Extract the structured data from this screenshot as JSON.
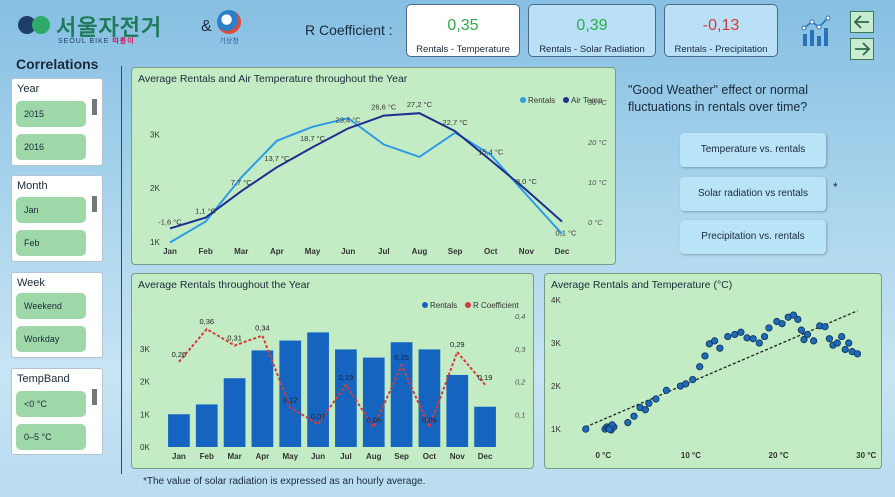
{
  "header": {
    "logo_text": "서울자전거",
    "logo_sub_en": "SEOUL BIKE",
    "logo_sub_kr": "따릉이",
    "amp": "&",
    "kma_label": "기상청",
    "r_label": "R Coefficient :",
    "cards": [
      {
        "value": "0,35",
        "label": "Rentals - Temperature",
        "color": "#2eaa4a",
        "bg": "#ffffff"
      },
      {
        "value": "0,39",
        "label": "Rentals - Solar Radiation",
        "color": "#2eaa4a",
        "bg": "#b9e0f7"
      },
      {
        "value": "-0,13",
        "label": "Rentals - Precipitation",
        "color": "#d83a3a",
        "bg": "#b9e0f7"
      }
    ],
    "nav_back": "←",
    "nav_forward": "→"
  },
  "sidebar": {
    "title": "Correlations",
    "slicers": [
      {
        "name": "Year",
        "options": [
          "2015",
          "2016"
        ]
      },
      {
        "name": "Month",
        "options": [
          "Jan",
          "Feb"
        ]
      },
      {
        "name": "Week",
        "options": [
          "Weekend",
          "Workday"
        ]
      },
      {
        "name": "TempBand",
        "options": [
          "<0 °C",
          "0–5 °C"
        ]
      }
    ]
  },
  "question": "\"Good Weather\" effect or normal fluctuations in rentals over time?",
  "buttons": [
    "Temperature vs. rentals",
    "Solar radiation vs rentals",
    "Precipitation vs. rentals"
  ],
  "star": "*",
  "footnote": "*The value of solar radiation is expressed as an hourly average.",
  "chart_data": [
    {
      "type": "line",
      "title": "Average Rentals and Air Temperature throughout the Year",
      "categories": [
        "Jan",
        "Feb",
        "Mar",
        "Apr",
        "May",
        "Jun",
        "Jul",
        "Aug",
        "Sep",
        "Oct",
        "Nov",
        "Dec"
      ],
      "series": [
        {
          "name": "Rentals",
          "axis": "left",
          "color": "#2d9be8",
          "values": [
            0.99,
            1.38,
            2.2,
            2.88,
            3.14,
            3.3,
            2.81,
            2.58,
            3.03,
            2.62,
            1.88,
            1.15
          ]
        },
        {
          "name": "Air Temp",
          "axis": "right",
          "color": "#1f2e8f",
          "values": [
            -1.6,
            1.1,
            7.7,
            13.7,
            18.7,
            23.4,
            26.6,
            27.2,
            22.7,
            15.4,
            8.0,
            0.1
          ],
          "labels": [
            "-1,6 °C",
            "1,1 °C",
            "7,7 °C",
            "13,7 °C",
            "18,7 °C",
            "23,4 °C",
            "26,6 °C",
            "27,2 °C",
            "22,7 °C",
            "15,4 °C",
            "8,0 °C",
            "0,1 °C"
          ]
        }
      ],
      "left_ticks": [
        "1K",
        "2K",
        "3K"
      ],
      "right_ticks": [
        "0 °C",
        "10 °C",
        "20 °C",
        "30 °C"
      ],
      "ylim_left": [
        1000,
        3600
      ],
      "ylim_right": [
        -5,
        30
      ],
      "legend": "top-right"
    },
    {
      "type": "bar",
      "title": "Average Rentals throughout the Year",
      "categories": [
        "Jan",
        "Feb",
        "Mar",
        "Apr",
        "May",
        "Jun",
        "Jul",
        "Aug",
        "Sep",
        "Oct",
        "Nov",
        "Dec"
      ],
      "series": [
        {
          "name": "Rentals",
          "axis": "left",
          "color": "#1565c0",
          "values": [
            1000,
            1300,
            2100,
            2950,
            3250,
            3500,
            2980,
            2730,
            3200,
            2980,
            2200,
            1230
          ]
        },
        {
          "name": "R Coefficient",
          "axis": "right",
          "color": "#d83a3a",
          "values": [
            0.26,
            0.36,
            0.31,
            0.34,
            0.12,
            0.07,
            0.19,
            0.06,
            0.25,
            0.06,
            0.29,
            0.19
          ],
          "labels": [
            "0,26",
            "0,36",
            "0,31",
            "0,34",
            "0,12",
            "0,07",
            "0,19",
            "0,06",
            "0,25",
            "0,06",
            "0,29",
            "0,19"
          ]
        }
      ],
      "left_ticks": [
        "0K",
        "1K",
        "2K",
        "3K"
      ],
      "right_ticks": [
        "0,1",
        "0,2",
        "0,3",
        "0,4"
      ],
      "ylim_left": [
        0,
        4000
      ],
      "ylim_right": [
        0,
        0.4
      ],
      "legend": "top-right"
    },
    {
      "type": "scatter",
      "title": "Average Rentals and Temperature (°C)",
      "x_ticks": [
        "0 °C",
        "10 °C",
        "20 °C",
        "30 °C"
      ],
      "y_ticks": [
        "1K",
        "2K",
        "3K",
        "4K"
      ],
      "xlim": [
        -3,
        31
      ],
      "ylim": [
        700,
        4000
      ],
      "trendline": {
        "x0": -2,
        "y0": 1050,
        "x1": 29,
        "y1": 3750
      },
      "points": [
        [
          -2,
          1000
        ],
        [
          0.2,
          1000
        ],
        [
          0.4,
          1050
        ],
        [
          0.6,
          1020
        ],
        [
          0.9,
          980
        ],
        [
          1.2,
          1050
        ],
        [
          1.0,
          1100
        ],
        [
          0.7,
          1000
        ],
        [
          2.8,
          1150
        ],
        [
          3.5,
          1300
        ],
        [
          4.2,
          1500
        ],
        [
          4.8,
          1450
        ],
        [
          5.2,
          1600
        ],
        [
          6.0,
          1700
        ],
        [
          7.2,
          1900
        ],
        [
          8.8,
          2000
        ],
        [
          9.4,
          2050
        ],
        [
          10.2,
          2150
        ],
        [
          11.0,
          2450
        ],
        [
          11.6,
          2700
        ],
        [
          12.1,
          2980
        ],
        [
          12.7,
          3050
        ],
        [
          13.3,
          2880
        ],
        [
          14.2,
          3150
        ],
        [
          15.0,
          3200
        ],
        [
          15.7,
          3250
        ],
        [
          16.4,
          3120
        ],
        [
          17.1,
          3100
        ],
        [
          17.8,
          3000
        ],
        [
          18.4,
          3150
        ],
        [
          18.9,
          3350
        ],
        [
          19.8,
          3500
        ],
        [
          20.4,
          3450
        ],
        [
          21.1,
          3600
        ],
        [
          21.7,
          3650
        ],
        [
          22.2,
          3550
        ],
        [
          22.6,
          3300
        ],
        [
          22.9,
          3080
        ],
        [
          23.3,
          3200
        ],
        [
          24.0,
          3050
        ],
        [
          24.7,
          3400
        ],
        [
          25.3,
          3380
        ],
        [
          25.8,
          3100
        ],
        [
          26.2,
          2950
        ],
        [
          26.7,
          3000
        ],
        [
          27.2,
          3150
        ],
        [
          27.6,
          2850
        ],
        [
          28.0,
          3000
        ],
        [
          28.4,
          2800
        ],
        [
          29.0,
          2750
        ]
      ]
    }
  ]
}
